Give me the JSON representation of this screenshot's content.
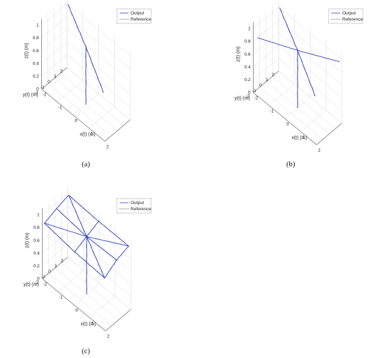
{
  "legend": {
    "output": "Output",
    "reference": "Reference"
  },
  "colors": {
    "output": "#2b3ec4",
    "reference": "#1a1a4a",
    "grid": "#d9d9d9",
    "axis": "#555555"
  },
  "chart_data": [
    {
      "type": "line3d",
      "panel": "(a)",
      "xlabel": "x(t) (m)",
      "ylabel": "y(t) (m)",
      "zlabel": "z(t) (m)",
      "xlim": [
        -2,
        2
      ],
      "ylim": [
        -2,
        2
      ],
      "zlim": [
        0,
        1.1
      ],
      "xticks": [
        "-2",
        "-1",
        "0",
        "1",
        "2"
      ],
      "yticks": [
        "-2",
        "-1",
        "0",
        "1",
        "2"
      ],
      "zticks": [
        "0",
        "0.2",
        "0.4",
        "0.6",
        "0.8",
        "1"
      ],
      "grid": true,
      "legend_position": "top-right",
      "series": [
        {
          "name": "Output",
          "style": "solid"
        },
        {
          "name": "Reference",
          "style": "dotted"
        }
      ]
    },
    {
      "type": "line3d",
      "panel": "(b)",
      "xlabel": "x(t) (m)",
      "ylabel": "y(t) (m)",
      "zlabel": "z(t) (m)",
      "xlim": [
        -2,
        2
      ],
      "ylim": [
        -2,
        2
      ],
      "zlim": [
        0,
        1.1
      ],
      "xticks": [
        "-2",
        "-1",
        "0",
        "1",
        "2"
      ],
      "yticks": [
        "-2",
        "-1",
        "0",
        "1",
        "2"
      ],
      "zticks": [
        "0",
        "0.2",
        "0.4",
        "0.6",
        "0.8",
        "1"
      ],
      "grid": true,
      "legend_position": "top-right",
      "series": [
        {
          "name": "Output",
          "style": "solid"
        },
        {
          "name": "Reference",
          "style": "dotted"
        }
      ]
    },
    {
      "type": "line3d",
      "panel": "(c)",
      "xlabel": "x(t) (m)",
      "ylabel": "y(t) (m)",
      "zlabel": "z(t) (m)",
      "xlim": [
        -2,
        2
      ],
      "ylim": [
        -2,
        2
      ],
      "zlim": [
        0,
        1.1
      ],
      "xticks": [
        "-2",
        "-1",
        "0",
        "1",
        "2"
      ],
      "yticks": [
        "-2",
        "-1",
        "0",
        "1",
        "2"
      ],
      "zticks": [
        "0",
        "0.2",
        "0.4",
        "0.6",
        "0.8",
        "1"
      ],
      "grid": true,
      "legend_position": "top-right",
      "series": [
        {
          "name": "Output",
          "style": "solid"
        },
        {
          "name": "Reference",
          "style": "dotted"
        }
      ]
    }
  ]
}
